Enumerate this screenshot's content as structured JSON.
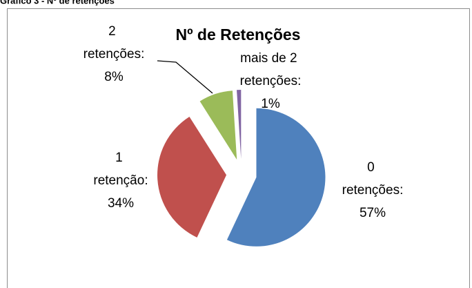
{
  "caption": "Gráfico 3 - Nº de retenções",
  "chart_data": {
    "type": "pie",
    "title": "Nº de Retenções",
    "categories": [
      "0 retenções:",
      "1 retenção:",
      "2 retenções:",
      "mais de 2 retenções:"
    ],
    "values": [
      57,
      34,
      8,
      1
    ],
    "value_labels": [
      "57%",
      "34%",
      "8%",
      "1%"
    ],
    "colors": [
      "#4f81bd",
      "#c0504d",
      "#9bbb59",
      "#8064a2"
    ],
    "exploded": true,
    "legend": false
  }
}
